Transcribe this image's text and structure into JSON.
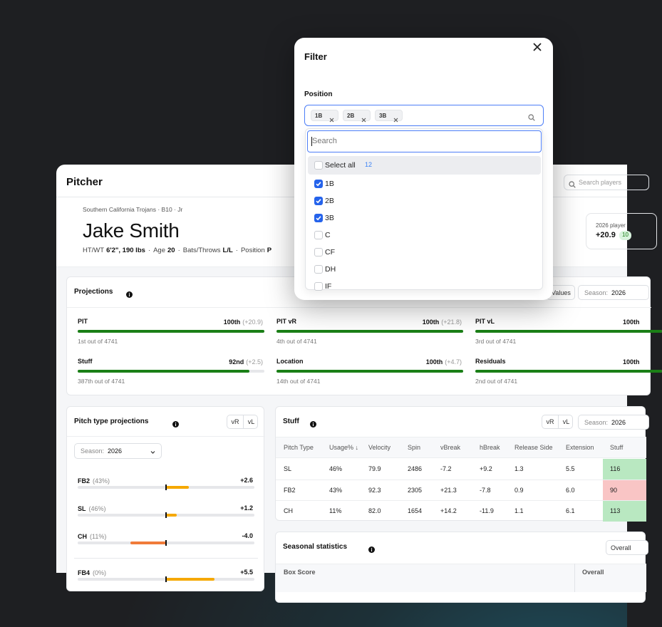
{
  "header": {
    "title": "Pitcher",
    "search_placeholder": "Search players"
  },
  "player": {
    "team": "Southern California Trojans · B10 · Jr",
    "name": "Jake Smith",
    "separator": "·",
    "details": [
      {
        "label": "HT/WT",
        "value": "6'2\", 190 lbs"
      },
      {
        "label": "Age",
        "value": "20"
      },
      {
        "label": "Bats/Throws",
        "value": "L/L"
      },
      {
        "label": "Position",
        "value": "P"
      }
    ],
    "summary": {
      "label": "2026 player",
      "value": "+20.9",
      "badge": "10"
    }
  },
  "projections": {
    "title": "Projections",
    "values_button": "Values",
    "season_label": "Season:",
    "season": "2026",
    "xlim": [
      0,
      100
    ],
    "color": "#1a7f16",
    "metrics": [
      {
        "name": "PIT",
        "percentile": 100,
        "percentile_label": "100th",
        "delta": "(+20.9)",
        "rank": "1st out of 4741"
      },
      {
        "name": "PIT vR",
        "percentile": 100,
        "percentile_label": "100th",
        "delta": "(+21.8)",
        "rank": "4th out of 4741"
      },
      {
        "name": "PIT vL",
        "percentile": 100,
        "percentile_label": "100th",
        "rank": "3rd out of 4741"
      },
      {
        "name": "Stuff",
        "percentile": 92,
        "percentile_label": "92nd",
        "delta": "(+2.5)",
        "rank": "387th out of 4741"
      },
      {
        "name": "Location",
        "percentile": 100,
        "percentile_label": "100th",
        "delta": "(+4.7)",
        "rank": "14th out of 4741"
      },
      {
        "name": "Residuals",
        "percentile": 100,
        "percentile_label": "100th",
        "rank": "2nd out of 4741"
      }
    ]
  },
  "pitch_types": {
    "title": "Pitch type projections",
    "toggle": [
      "vR",
      "vL"
    ],
    "season_label": "Season:",
    "season": "2026",
    "xlim": [
      -10,
      10
    ],
    "positive_color": "#f5a800",
    "negative_color": "#f07b3a",
    "rows": [
      {
        "name": "FB2",
        "usage": "(43%)",
        "value": 2.6,
        "value_label": "+2.6"
      },
      {
        "name": "SL",
        "usage": "(46%)",
        "value": 1.2,
        "value_label": "+1.2"
      },
      {
        "name": "CH",
        "usage": "(11%)",
        "value": -4.0,
        "value_label": "-4.0"
      },
      {
        "name": "FB4",
        "usage": "(0%)",
        "value": 5.5,
        "value_label": "+5.5"
      }
    ]
  },
  "stuff": {
    "title": "Stuff",
    "toggle": [
      "vR",
      "vL"
    ],
    "season_label": "Season:",
    "season": "2026",
    "columns": [
      "Pitch Type",
      "Usage% ↓",
      "Velocity",
      "Spin",
      "vBreak",
      "hBreak",
      "Release Side",
      "Extension",
      "Stuff"
    ],
    "rows": [
      [
        "SL",
        "46%",
        "79.9",
        "2486",
        "-7.2",
        "+9.2",
        "1.3",
        "5.5",
        "116"
      ],
      [
        "FB2",
        "43%",
        "92.3",
        "2305",
        "+21.3",
        "-7.8",
        "0.9",
        "6.0",
        "90"
      ],
      [
        "CH",
        "11%",
        "82.0",
        "1654",
        "+14.2",
        "-11.9",
        "1.1",
        "6.1",
        "113"
      ]
    ],
    "stuff_colors": [
      "#b9e8c1",
      "#f9c5c5",
      "#b9e8c1"
    ]
  },
  "seasonal": {
    "title": "Seasonal statistics",
    "button": "Overall",
    "columns": [
      "Box Score",
      "Overall"
    ]
  },
  "filter": {
    "title": "Filter",
    "field_label": "Position",
    "selected": [
      "1B",
      "2B",
      "3B"
    ],
    "search_placeholder": "Search",
    "select_all": "Select all",
    "count": 12,
    "options": [
      {
        "label": "1B",
        "checked": true
      },
      {
        "label": "2B",
        "checked": true
      },
      {
        "label": "3B",
        "checked": true
      },
      {
        "label": "C",
        "checked": false
      },
      {
        "label": "CF",
        "checked": false
      },
      {
        "label": "DH",
        "checked": false
      },
      {
        "label": "IF",
        "checked": false
      }
    ]
  }
}
